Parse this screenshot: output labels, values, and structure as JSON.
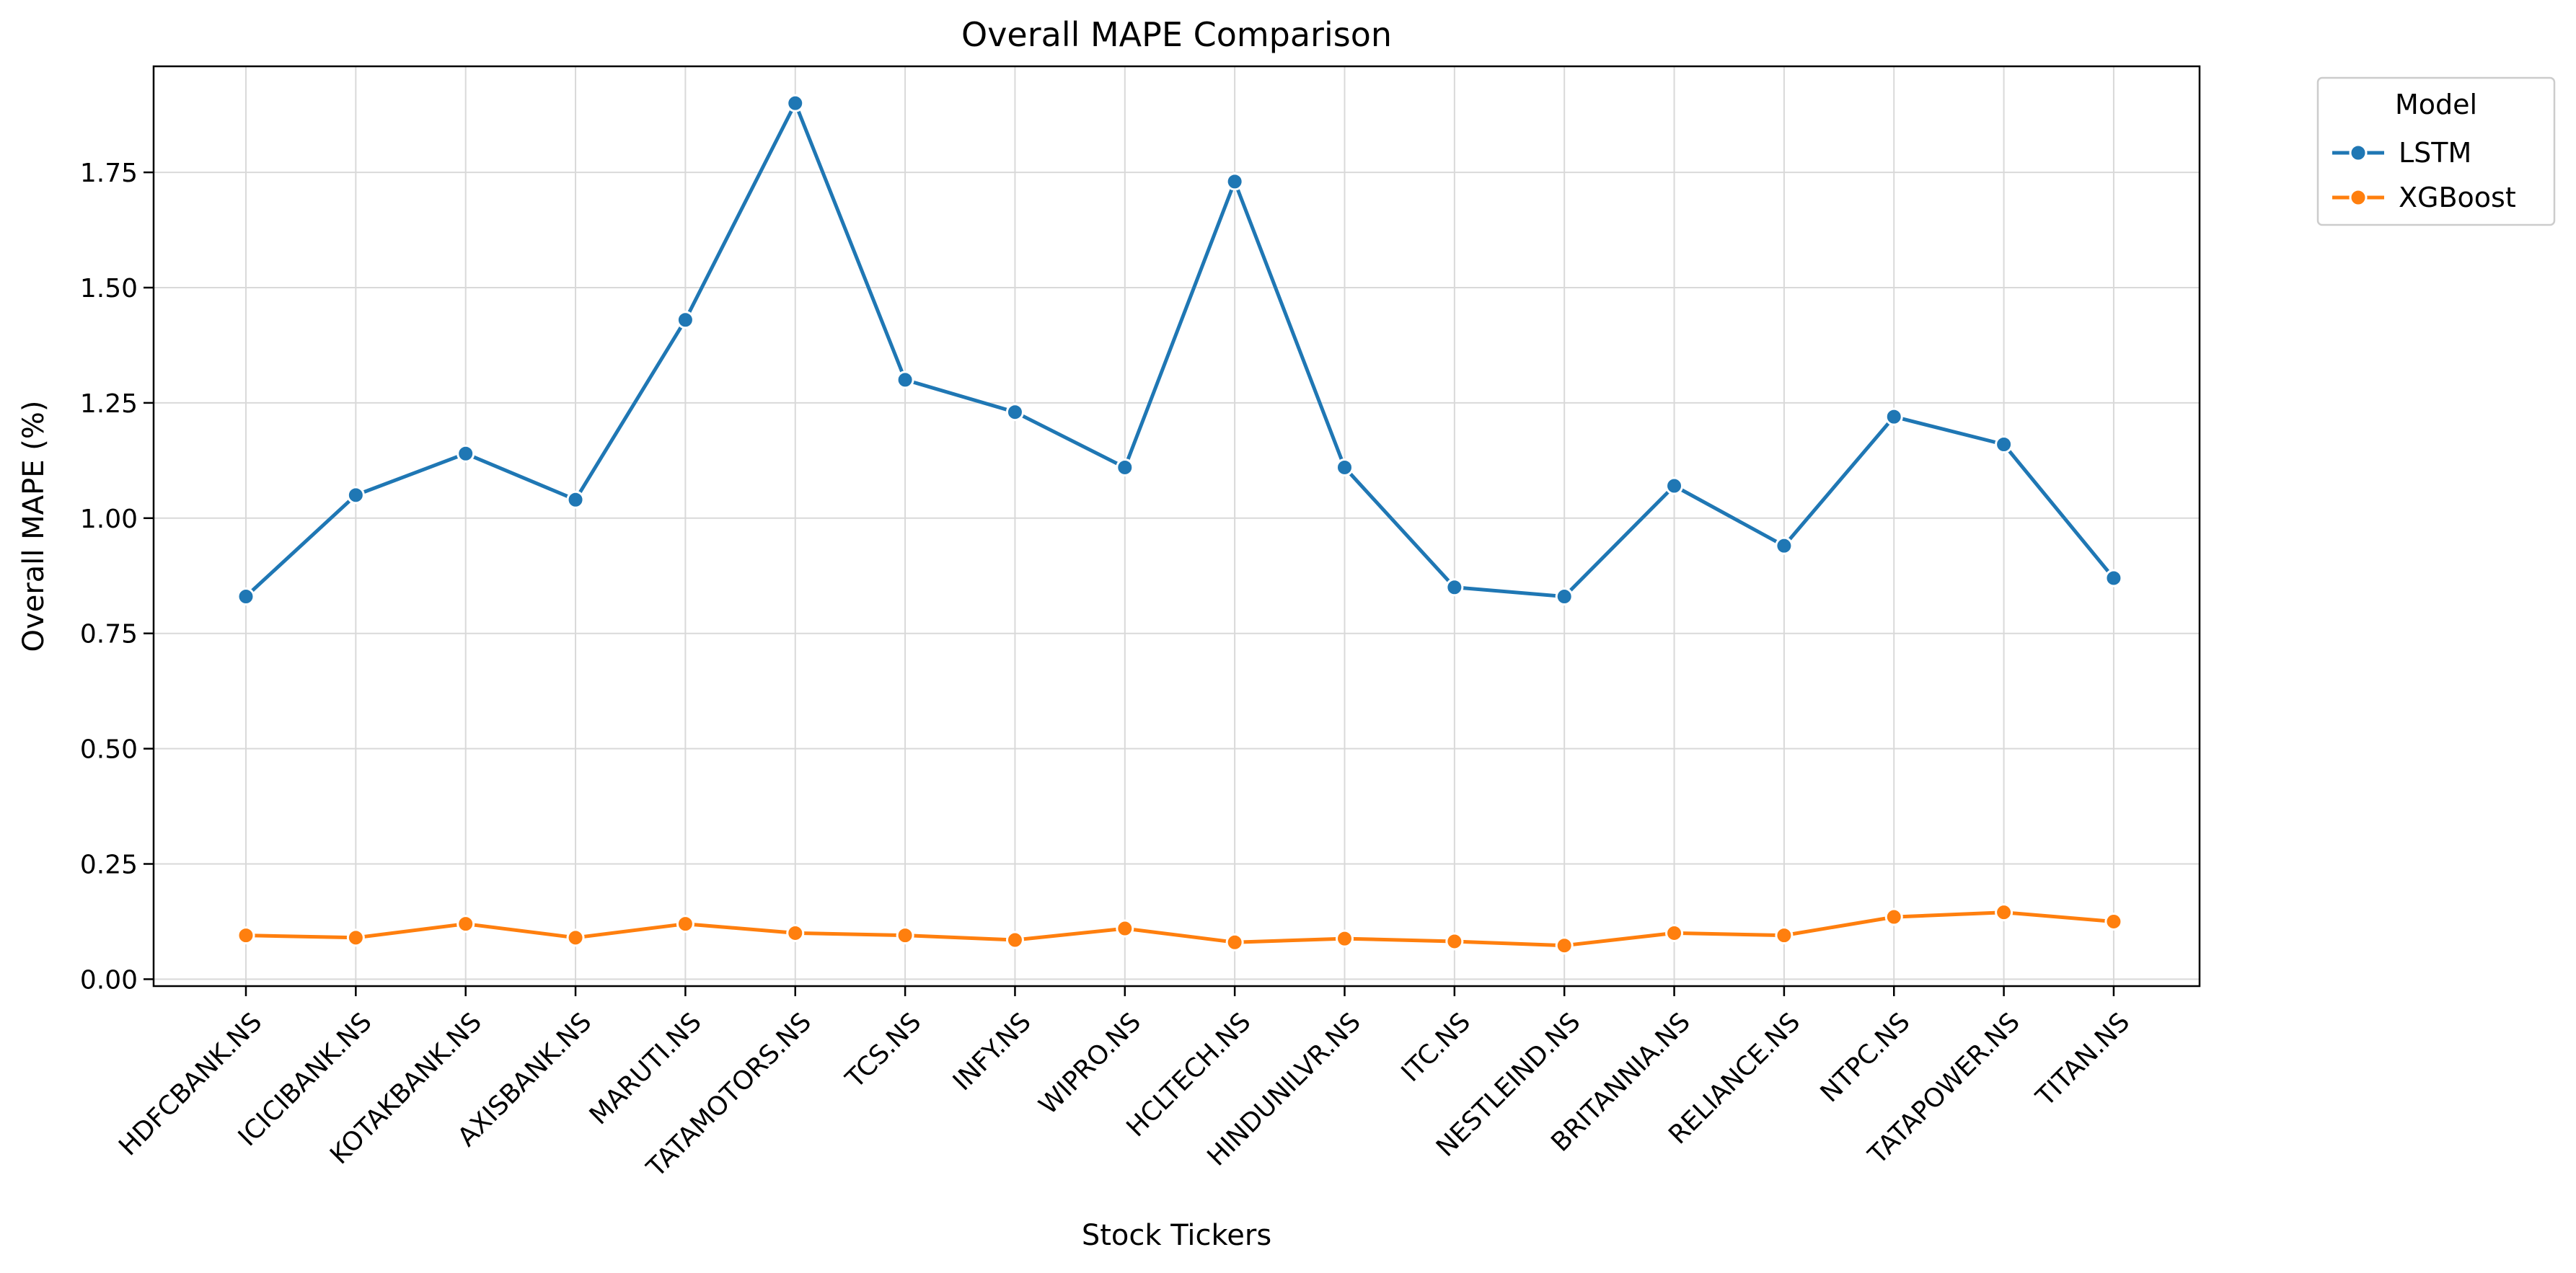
{
  "chart_data": {
    "type": "line",
    "title": "Overall MAPE Comparison",
    "xlabel": "Stock Tickers",
    "ylabel": "Overall MAPE (%)",
    "categories": [
      "HDFCBANK.NS",
      "ICICIBANK.NS",
      "KOTAKBANK.NS",
      "AXISBANK.NS",
      "MARUTI.NS",
      "TATAMOTORS.NS",
      "TCS.NS",
      "INFY.NS",
      "WIPRO.NS",
      "HCLTECH.NS",
      "HINDUNILVR.NS",
      "ITC.NS",
      "NESTLEIND.NS",
      "BRITANNIA.NS",
      "RELIANCE.NS",
      "NTPC.NS",
      "TATAPOWER.NS",
      "TITAN.NS"
    ],
    "yticks": [
      "0.00",
      "0.25",
      "0.50",
      "0.75",
      "1.00",
      "1.25",
      "1.50",
      "1.75"
    ],
    "ylim": [
      -0.015,
      1.98
    ],
    "grid": true,
    "legend": {
      "title": "Model",
      "placement": "outside-top-right"
    },
    "series": [
      {
        "name": "LSTM",
        "color": "#1f77b4",
        "values": [
          0.83,
          1.05,
          1.14,
          1.04,
          1.43,
          1.9,
          1.3,
          1.23,
          1.11,
          1.73,
          1.11,
          0.85,
          0.83,
          1.07,
          0.94,
          1.22,
          1.16,
          0.87
        ]
      },
      {
        "name": "XGBoost",
        "color": "#ff7f0e",
        "values": [
          0.095,
          0.09,
          0.12,
          0.09,
          0.12,
          0.1,
          0.095,
          0.085,
          0.11,
          0.08,
          0.088,
          0.082,
          0.073,
          0.1,
          0.095,
          0.135,
          0.145,
          0.125
        ]
      }
    ]
  }
}
